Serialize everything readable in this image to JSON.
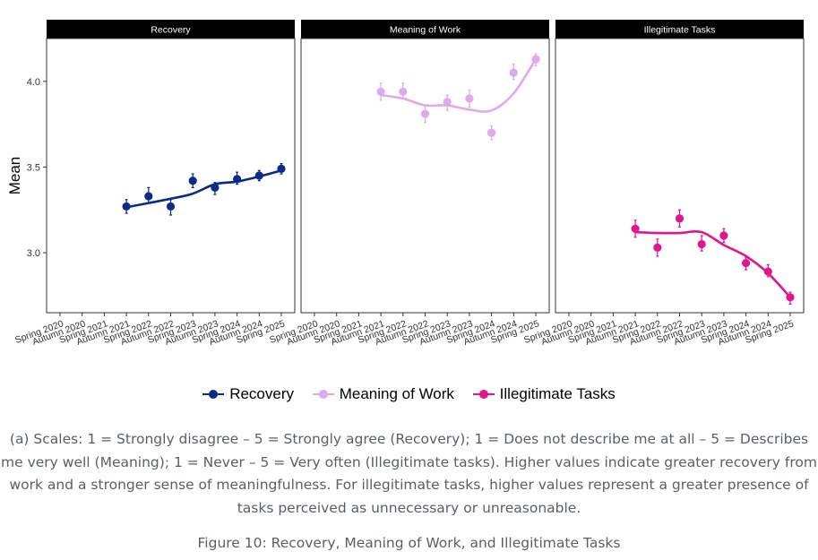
{
  "chart_data": {
    "type": "line",
    "ylabel": "Mean",
    "xlabel": "",
    "ylim": [
      2.65,
      4.25
    ],
    "yticks": [
      "3.0",
      "3.5",
      "4.0"
    ],
    "ytick_values": [
      3.0,
      3.5,
      4.0
    ],
    "categories": [
      "Spring 2020",
      "Autumn 2020",
      "Spring 2021",
      "Autumn 2021",
      "Spring 2022",
      "Autumn 2022",
      "Spring 2023",
      "Autumn 2023",
      "Spring 2024",
      "Autumn 2024",
      "Spring 2025"
    ],
    "grid": false,
    "legend_position": "bottom",
    "series": [
      {
        "name": "Recovery",
        "panel": "Recovery",
        "color": "#0a2a8c",
        "points": [
          {
            "category": "Autumn 2021",
            "value": 3.27,
            "lower": 3.23,
            "upper": 3.31
          },
          {
            "category": "Spring 2022",
            "value": 3.33,
            "lower": 3.29,
            "upper": 3.38
          },
          {
            "category": "Autumn 2022",
            "value": 3.27,
            "lower": 3.22,
            "upper": 3.31
          },
          {
            "category": "Spring 2023",
            "value": 3.42,
            "lower": 3.38,
            "upper": 3.46
          },
          {
            "category": "Autumn 2023",
            "value": 3.38,
            "lower": 3.34,
            "upper": 3.41
          },
          {
            "category": "Spring 2024",
            "value": 3.43,
            "lower": 3.4,
            "upper": 3.47
          },
          {
            "category": "Autumn 2024",
            "value": 3.45,
            "lower": 3.42,
            "upper": 3.48
          },
          {
            "category": "Spring 2025",
            "value": 3.49,
            "lower": 3.46,
            "upper": 3.52
          }
        ],
        "trend": [
          3.265,
          3.29,
          3.315,
          3.345,
          3.4,
          3.415,
          3.445,
          3.48
        ]
      },
      {
        "name": "Meaning of Work",
        "panel": "Meaning of Work",
        "color": "#e0a8ee",
        "points": [
          {
            "category": "Autumn 2021",
            "value": 3.94,
            "lower": 3.89,
            "upper": 3.99
          },
          {
            "category": "Spring 2022",
            "value": 3.94,
            "lower": 3.9,
            "upper": 3.99
          },
          {
            "category": "Autumn 2022",
            "value": 3.81,
            "lower": 3.76,
            "upper": 3.86
          },
          {
            "category": "Spring 2023",
            "value": 3.88,
            "lower": 3.83,
            "upper": 3.92
          },
          {
            "category": "Autumn 2023",
            "value": 3.9,
            "lower": 3.85,
            "upper": 3.95
          },
          {
            "category": "Spring 2024",
            "value": 3.7,
            "lower": 3.66,
            "upper": 3.74
          },
          {
            "category": "Autumn 2024",
            "value": 4.05,
            "lower": 4.01,
            "upper": 4.1
          },
          {
            "category": "Spring 2025",
            "value": 4.13,
            "lower": 4.09,
            "upper": 4.16
          }
        ],
        "trend": [
          3.92,
          3.9,
          3.86,
          3.86,
          3.835,
          3.83,
          3.93,
          4.13
        ]
      },
      {
        "name": "Illegitimate Tasks",
        "panel": "Illegitimate Tasks",
        "color": "#e0168e",
        "points": [
          {
            "category": "Autumn 2021",
            "value": 3.14,
            "lower": 3.09,
            "upper": 3.19
          },
          {
            "category": "Spring 2022",
            "value": 3.03,
            "lower": 2.98,
            "upper": 3.08
          },
          {
            "category": "Autumn 2022",
            "value": 3.2,
            "lower": 3.15,
            "upper": 3.25
          },
          {
            "category": "Spring 2023",
            "value": 3.05,
            "lower": 3.01,
            "upper": 3.1
          },
          {
            "category": "Autumn 2023",
            "value": 3.1,
            "lower": 3.06,
            "upper": 3.14
          },
          {
            "category": "Spring 2024",
            "value": 2.94,
            "lower": 2.9,
            "upper": 2.97
          },
          {
            "category": "Autumn 2024",
            "value": 2.89,
            "lower": 2.86,
            "upper": 2.93
          },
          {
            "category": "Spring 2025",
            "value": 2.74,
            "lower": 2.7,
            "upper": 2.77
          }
        ],
        "trend": [
          3.12,
          3.115,
          3.115,
          3.12,
          3.045,
          2.98,
          2.88,
          2.74
        ]
      }
    ],
    "panels": [
      "Recovery",
      "Meaning of Work",
      "Illegitimate Tasks"
    ]
  },
  "legend": {
    "items": [
      {
        "label": "Recovery",
        "color": "#0a2a8c"
      },
      {
        "label": "Meaning of Work",
        "color": "#e0a8ee"
      },
      {
        "label": "Illegitimate Tasks",
        "color": "#e0168e"
      }
    ]
  },
  "caption": {
    "text": "(a) Scales: 1 = Strongly disagree – 5 = Strongly agree (Recovery); 1 = Does not describe me at all – 5 = Describes me very well (Meaning); 1 = Never – 5 = Very often (Illegitimate tasks). Higher values indicate greater recovery from work and a stronger sense of meaningfulness. For illegitimate tasks, higher values represent a greater presence of tasks perceived as unnecessary or unreasonable."
  },
  "figure": {
    "title": "Figure 10: Recovery, Meaning of Work, and Illegitimate Tasks"
  }
}
